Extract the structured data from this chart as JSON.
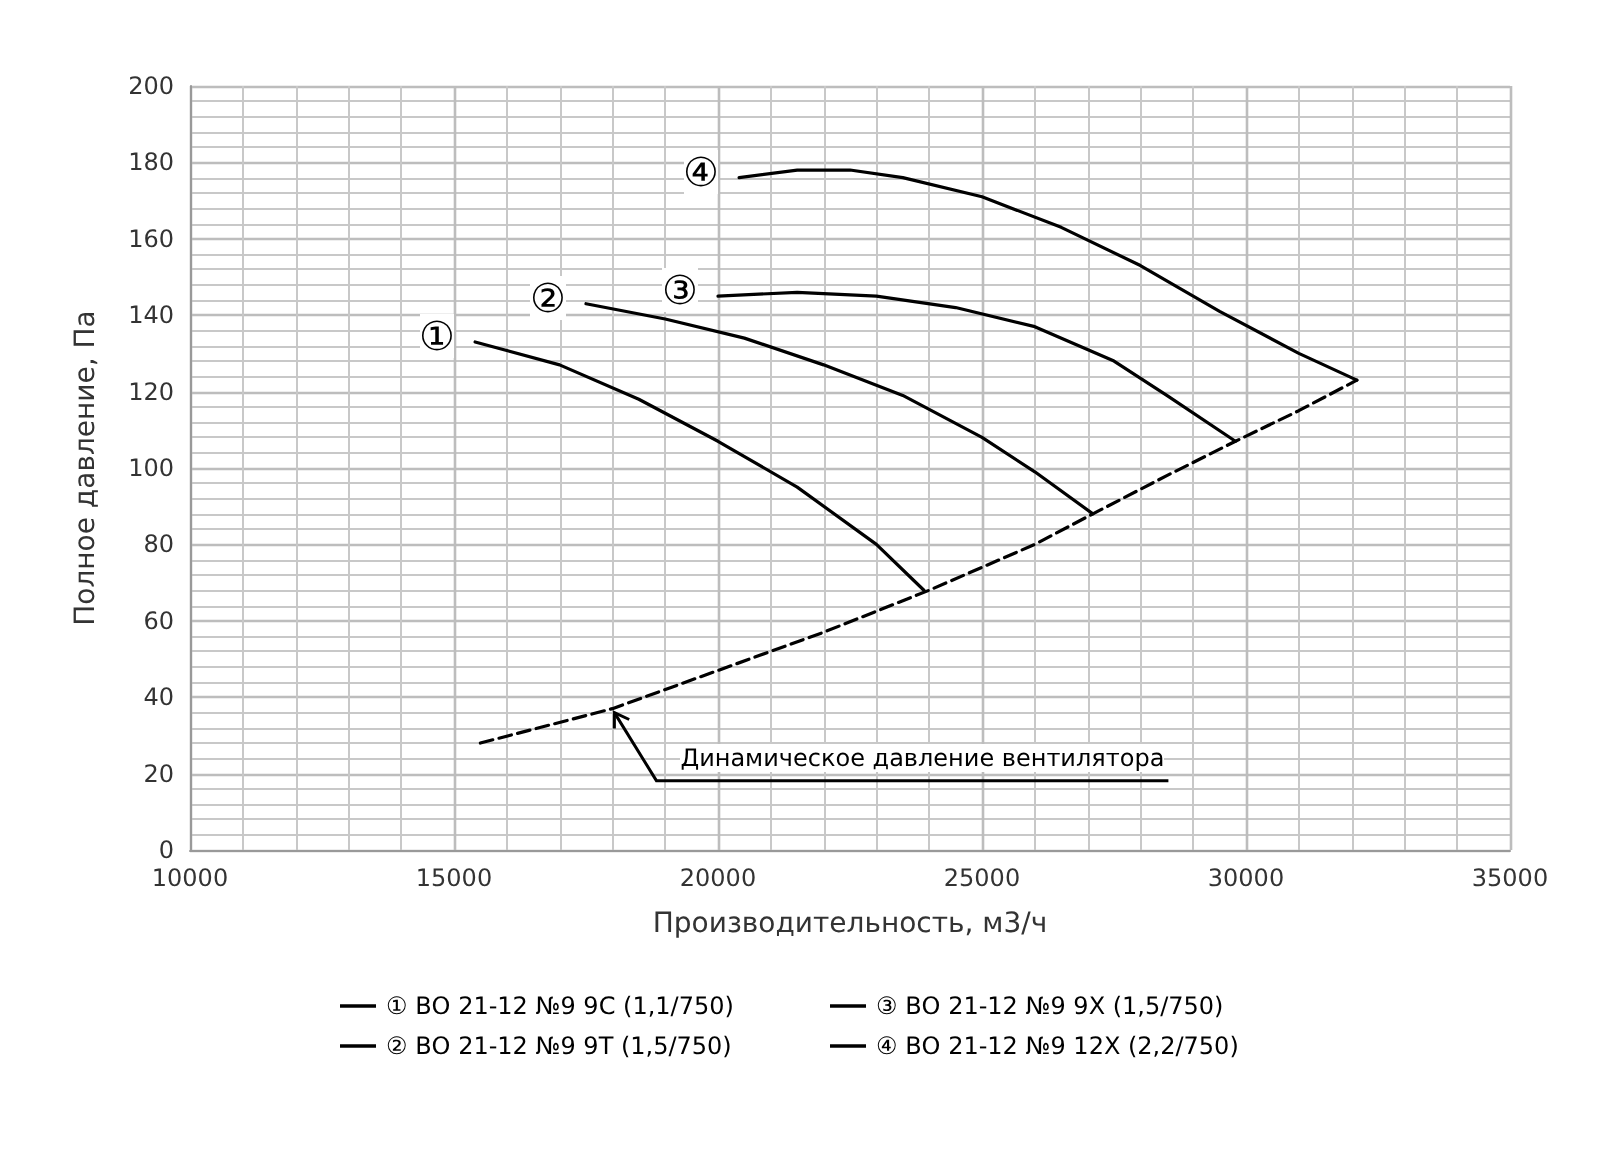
{
  "chart_data": {
    "type": "line",
    "xlabel": "Производительность, м3/ч",
    "ylabel": "Полное давление, Па",
    "xlim": [
      10000,
      35000
    ],
    "xticks": [
      10000,
      15000,
      20000,
      25000,
      30000,
      35000
    ],
    "ylim": [
      0,
      200
    ],
    "yticks": [
      0,
      20,
      40,
      60,
      80,
      100,
      120,
      140,
      160,
      180,
      200
    ],
    "grid": true,
    "legend": "bottom",
    "marker": "none",
    "line_style": "solid",
    "series": [
      {
        "name": "① ВО 21-12 №9 9С (1,1/750)",
        "color": "#000000",
        "x": [
          15400,
          17000,
          18500,
          20000,
          21500,
          23000,
          23900
        ],
        "values": [
          133,
          127,
          118,
          107,
          95,
          80,
          68
        ]
      },
      {
        "name": "② ВО 21-12 №9 9Т (1,5/750)",
        "color": "#000000",
        "x": [
          17500,
          19000,
          20500,
          22000,
          23500,
          25000,
          26000,
          27100
        ],
        "values": [
          143,
          139,
          134,
          127,
          119,
          108,
          99,
          88
        ]
      },
      {
        "name": "③ ВО 21-12 №9 9Х (1,5/750)",
        "color": "#000000",
        "x": [
          20000,
          21500,
          23000,
          24500,
          26000,
          27500,
          28500,
          29800
        ],
        "values": [
          145,
          146,
          145,
          142,
          137,
          128,
          119,
          107
        ]
      },
      {
        "name": "④ ВО 21-12 №9 12Х (2,2/750)",
        "color": "#000000",
        "x": [
          20400,
          21500,
          22500,
          23500,
          25000,
          26500,
          28000,
          29500,
          31000,
          32100
        ],
        "values": [
          176,
          178,
          178,
          176,
          171,
          163,
          153,
          141,
          130,
          123
        ]
      },
      {
        "color": "#000000",
        "line_style": "dashed",
        "x": [
          15500,
          18000,
          20000,
          22000,
          24000,
          26000,
          27100,
          28500,
          29800,
          31000,
          32100
        ],
        "values": [
          28,
          37,
          47,
          57,
          68,
          80,
          88,
          98,
          107,
          115,
          123
        ]
      }
    ],
    "annotations": [
      {
        "text": "①",
        "x": 15400,
        "y": 133
      },
      {
        "text": "②",
        "x": 17500,
        "y": 143
      },
      {
        "text": "③",
        "x": 20000,
        "y": 145
      },
      {
        "text": "④",
        "x": 20400,
        "y": 176
      },
      {
        "text": "Динамическое давление вентилятора",
        "x": 18000,
        "y": 37
      }
    ]
  }
}
